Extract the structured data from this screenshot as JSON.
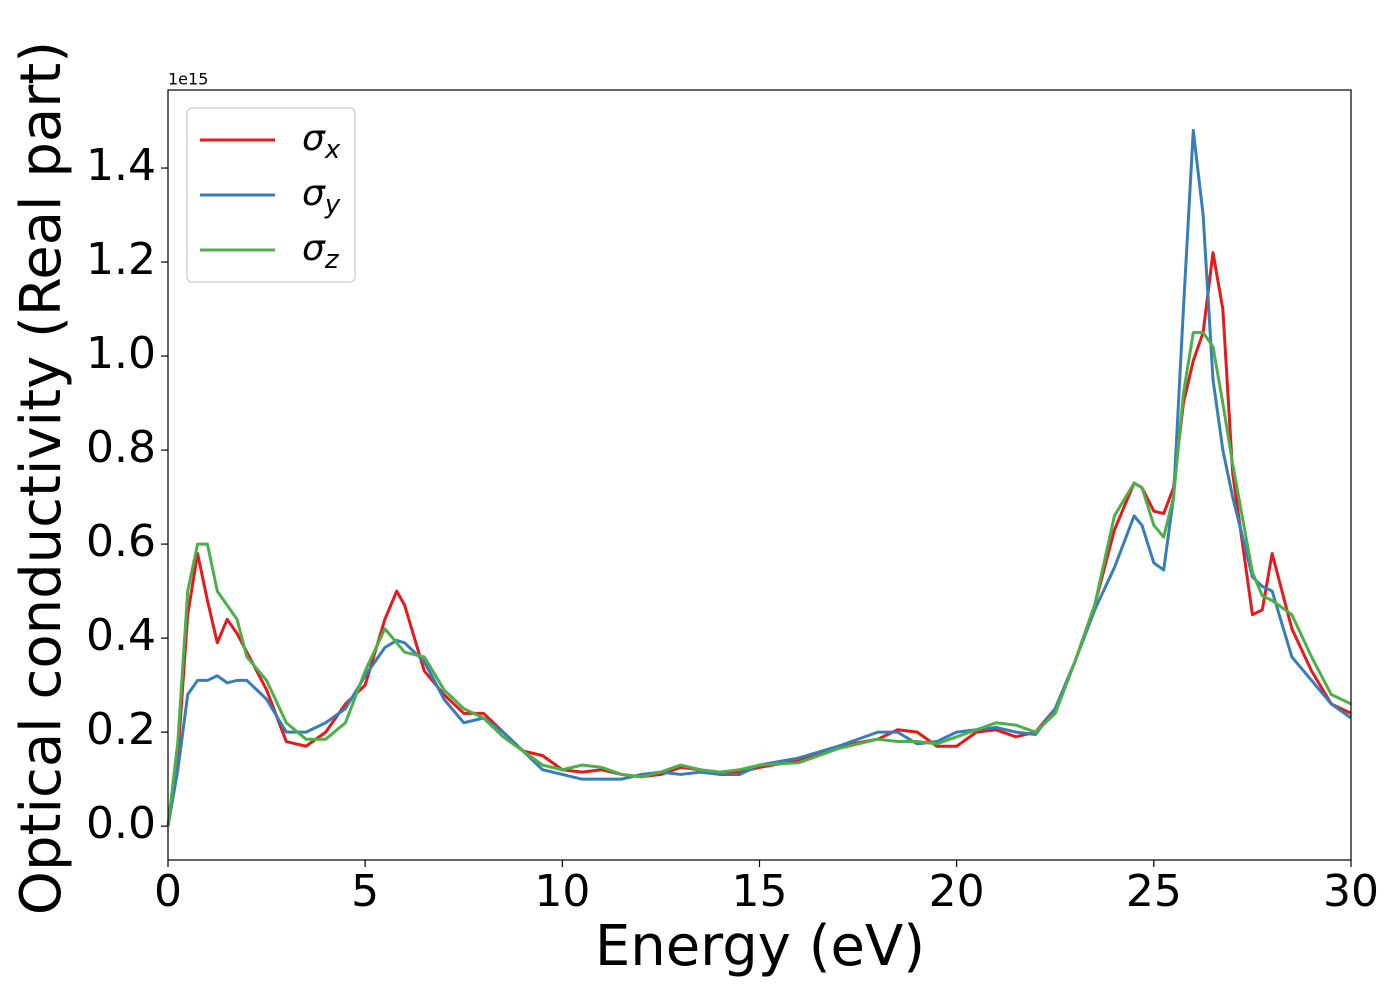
{
  "chart_data": {
    "type": "line",
    "xlabel": "Energy (eV)",
    "ylabel": "Optical conductivity (Real part)",
    "y_offset_label": "1e15",
    "legend": "upper left",
    "xlim": [
      0,
      30
    ],
    "xticks": [
      0,
      5,
      10,
      15,
      20,
      25,
      30
    ],
    "ylim": [
      -0.072,
      1.566
    ],
    "yticks": [
      {
        "value": 0,
        "label": "0.0"
      },
      0.2,
      0.4,
      0.6,
      0.8,
      {
        "value": 1,
        "label": "1.0"
      },
      1.2,
      1.4
    ],
    "x": [
      0,
      0.25,
      0.5,
      0.75,
      1,
      1.25,
      1.5,
      1.75,
      2,
      2.5,
      3,
      3.5,
      4,
      4.5,
      5,
      5.5,
      5.8,
      6,
      6.5,
      7,
      7.5,
      8,
      8.5,
      9,
      9.5,
      10,
      10.5,
      11,
      11.5,
      12,
      12.5,
      13,
      13.5,
      14,
      14.5,
      15,
      16,
      17,
      18,
      18.5,
      19,
      19.5,
      20,
      20.5,
      21,
      21.5,
      22,
      22.5,
      23,
      23.5,
      24,
      24.5,
      24.7,
      25,
      25.25,
      25.5,
      25.75,
      26,
      26.25,
      26.5,
      26.75,
      27,
      27.5,
      27.75,
      28,
      28.5,
      29,
      29.5,
      30
    ],
    "series": [
      {
        "name": "σx",
        "color": "#e41a1c",
        "values": [
          0,
          0.15,
          0.45,
          0.58,
          0.48,
          0.39,
          0.44,
          0.41,
          0.37,
          0.29,
          0.18,
          0.17,
          0.2,
          0.26,
          0.3,
          0.44,
          0.5,
          0.47,
          0.33,
          0.28,
          0.24,
          0.24,
          0.2,
          0.16,
          0.15,
          0.12,
          0.115,
          0.12,
          0.11,
          0.105,
          0.11,
          0.125,
          0.12,
          0.11,
          0.115,
          0.125,
          0.14,
          0.17,
          0.185,
          0.205,
          0.2,
          0.17,
          0.17,
          0.2,
          0.205,
          0.19,
          0.2,
          0.25,
          0.35,
          0.47,
          0.63,
          0.73,
          0.72,
          0.67,
          0.665,
          0.72,
          0.9,
          0.99,
          1.05,
          1.22,
          1.1,
          0.75,
          0.45,
          0.46,
          0.58,
          0.42,
          0.33,
          0.26,
          0.24
        ]
      },
      {
        "name": "σy",
        "color": "#377eb8",
        "values": [
          0,
          0.12,
          0.28,
          0.31,
          0.31,
          0.32,
          0.305,
          0.31,
          0.31,
          0.27,
          0.2,
          0.2,
          0.22,
          0.25,
          0.32,
          0.38,
          0.395,
          0.39,
          0.35,
          0.27,
          0.22,
          0.23,
          0.2,
          0.16,
          0.12,
          0.11,
          0.1,
          0.1,
          0.1,
          0.11,
          0.115,
          0.11,
          0.115,
          0.11,
          0.11,
          0.13,
          0.145,
          0.17,
          0.2,
          0.2,
          0.175,
          0.18,
          0.2,
          0.205,
          0.21,
          0.2,
          0.195,
          0.25,
          0.35,
          0.46,
          0.55,
          0.66,
          0.64,
          0.56,
          0.545,
          0.7,
          1.1,
          1.48,
          1.3,
          0.95,
          0.8,
          0.7,
          0.53,
          0.51,
          0.5,
          0.36,
          0.31,
          0.26,
          0.23
        ]
      },
      {
        "name": "σz",
        "color": "#4daf4a",
        "values": [
          0,
          0.18,
          0.5,
          0.6,
          0.6,
          0.5,
          0.47,
          0.44,
          0.36,
          0.31,
          0.22,
          0.185,
          0.185,
          0.22,
          0.33,
          0.42,
          0.39,
          0.37,
          0.36,
          0.29,
          0.25,
          0.23,
          0.19,
          0.16,
          0.13,
          0.12,
          0.13,
          0.125,
          0.11,
          0.105,
          0.115,
          0.13,
          0.12,
          0.115,
          0.12,
          0.13,
          0.135,
          0.165,
          0.185,
          0.18,
          0.18,
          0.175,
          0.19,
          0.205,
          0.22,
          0.215,
          0.2,
          0.24,
          0.35,
          0.47,
          0.66,
          0.73,
          0.72,
          0.64,
          0.615,
          0.7,
          0.92,
          1.05,
          1.05,
          1.02,
          0.9,
          0.77,
          0.54,
          0.49,
          0.48,
          0.45,
          0.36,
          0.28,
          0.26
        ]
      }
    ]
  }
}
